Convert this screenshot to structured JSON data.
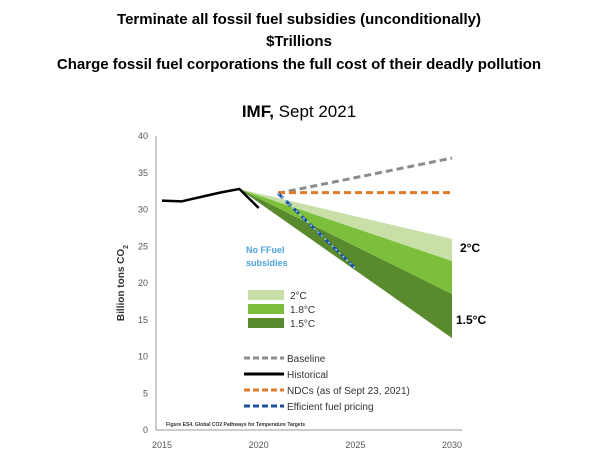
{
  "headlines": [
    "Terminate all fossil fuel subsidies (unconditionally)",
    "$Trillions",
    "Charge fossil fuel corporations the full cost of their deadly pollution"
  ],
  "source": {
    "org": "IMF,",
    "date": "Sept 2021"
  },
  "chart_data": {
    "type": "line",
    "ylabel": "Billion tons CO",
    "ylabel_sub": "2",
    "xlim": [
      2015,
      2030
    ],
    "ylim": [
      0,
      40
    ],
    "x_ticks": [
      "2015",
      "2020",
      "2025",
      "2030"
    ],
    "y_ticks": [
      "0",
      "5",
      "10",
      "15",
      "20",
      "25",
      "30",
      "35",
      "40"
    ],
    "series": [
      {
        "name": "Baseline",
        "x": [
          2021,
          2030
        ],
        "y": [
          32.2,
          37.0
        ],
        "color": "#8c8c8c",
        "dash": true
      },
      {
        "name": "Historical",
        "x": [
          2015,
          2016,
          2017,
          2018,
          2019,
          2020
        ],
        "y": [
          31.2,
          31.1,
          31.7,
          32.3,
          32.8,
          30.2
        ],
        "color": "#000000",
        "dash": false
      },
      {
        "name": "NDCs (as of Sept 23, 2021)",
        "x": [
          2021,
          2030
        ],
        "y": [
          32.3,
          32.3
        ],
        "color": "#e07b28",
        "dash": true
      },
      {
        "name": "Efficient fuel pricing",
        "x": [
          2021,
          2025
        ],
        "y": [
          32.2,
          22.0
        ],
        "color": "#1f4e9c",
        "dash": true
      }
    ],
    "bands": [
      {
        "name": "1.5°C",
        "x": [
          2019,
          2030
        ],
        "upper": [
          32.8,
          18.5
        ],
        "lower": [
          32.8,
          12.5
        ],
        "color": "#5a8a2e"
      },
      {
        "name": "1.8°C",
        "x": [
          2019,
          2030
        ],
        "upper": [
          32.8,
          23.0
        ],
        "lower": [
          32.8,
          18.5
        ],
        "color": "#7cbf3a"
      },
      {
        "name": "2°C",
        "x": [
          2019,
          2030
        ],
        "upper": [
          32.8,
          26.0
        ],
        "lower": [
          32.8,
          23.0
        ],
        "color": "#c8e0a8"
      }
    ],
    "band_legend": [
      "2°C",
      "1.8°C",
      "1.5°C"
    ],
    "line_legend": [
      "Baseline",
      "Historical",
      "NDCs (as of Sept 23, 2021)",
      "Efficient fuel pricing"
    ],
    "annotations": {
      "no_subsidies": [
        "No  FFuel",
        "subsidies"
      ],
      "label_2c": "2°C",
      "label_15c": "1.5°C",
      "figure_note": "Figure ES4. Global CO2 Pathways for Temperature Targets"
    }
  }
}
